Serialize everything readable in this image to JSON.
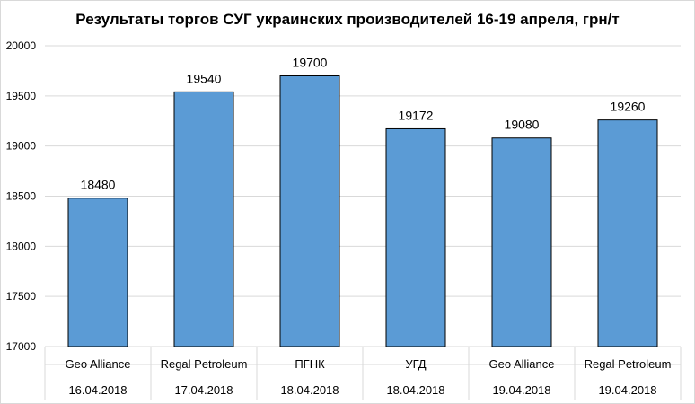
{
  "chart_data": {
    "type": "bar",
    "title": "Результаты торгов СУГ украинских производителей 16-19 апреля, грн/т",
    "categories": [
      {
        "producer": "Geo Alliance",
        "date": "16.04.2018"
      },
      {
        "producer": "Regal Petroleum",
        "date": "17.04.2018"
      },
      {
        "producer": "ПГНК",
        "date": "18.04.2018"
      },
      {
        "producer": "УГД",
        "date": "18.04.2018"
      },
      {
        "producer": "Geo Alliance",
        "date": "19.04.2018"
      },
      {
        "producer": "Regal Petroleum",
        "date": "19.04.2018"
      }
    ],
    "values": [
      18480,
      19540,
      19700,
      19172,
      19080,
      19260
    ],
    "ylim": [
      17000,
      20000
    ],
    "yticks": [
      17000,
      17500,
      18000,
      18500,
      19000,
      19500,
      20000
    ],
    "grid": true,
    "legend": "none",
    "bar_color": "#5b9bd5",
    "bar_edge_color": "#000000",
    "grid_color": "#d9d9d9"
  }
}
